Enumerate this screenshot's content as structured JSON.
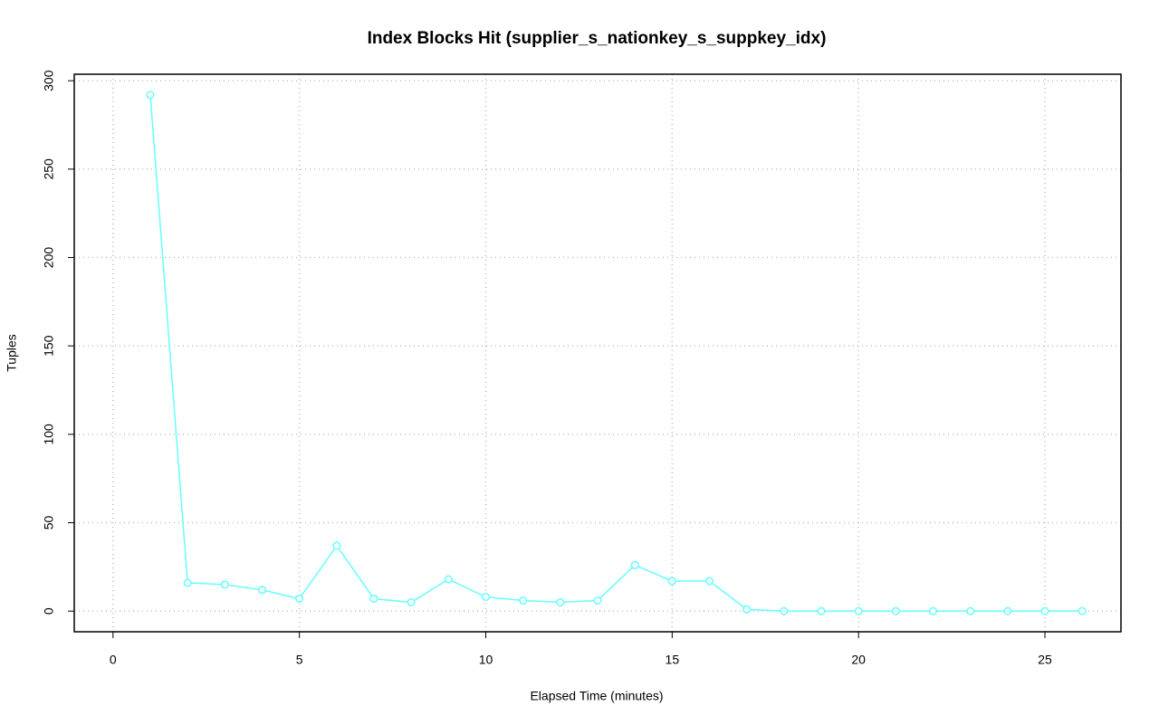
{
  "chart_data": {
    "type": "line",
    "title": "Index Blocks Hit (supplier_s_nationkey_s_suppkey_idx)",
    "x_label": "Elapsed Time (minutes)",
    "y_label": "Tuples",
    "x": [
      1,
      2,
      3,
      4,
      5,
      6,
      7,
      8,
      9,
      10,
      11,
      12,
      13,
      14,
      15,
      16,
      17,
      18,
      19,
      20,
      21,
      22,
      23,
      24,
      25,
      26
    ],
    "series": [
      {
        "name": "Index Blocks Hit",
        "color": "#66ffff",
        "values": [
          292,
          16,
          15,
          12,
          7,
          37,
          7,
          5,
          18,
          8,
          6,
          5,
          6,
          26,
          17,
          17,
          1,
          0,
          0,
          0,
          0,
          0,
          0,
          0,
          0,
          0
        ]
      }
    ],
    "xlim": [
      -1.04,
      27.04
    ],
    "xticks": [
      0,
      5,
      10,
      15,
      20,
      25
    ],
    "ylim": [
      -11.68,
      303.68
    ],
    "yticks": [
      0,
      50,
      100,
      150,
      200,
      250,
      300
    ],
    "grid": true
  }
}
